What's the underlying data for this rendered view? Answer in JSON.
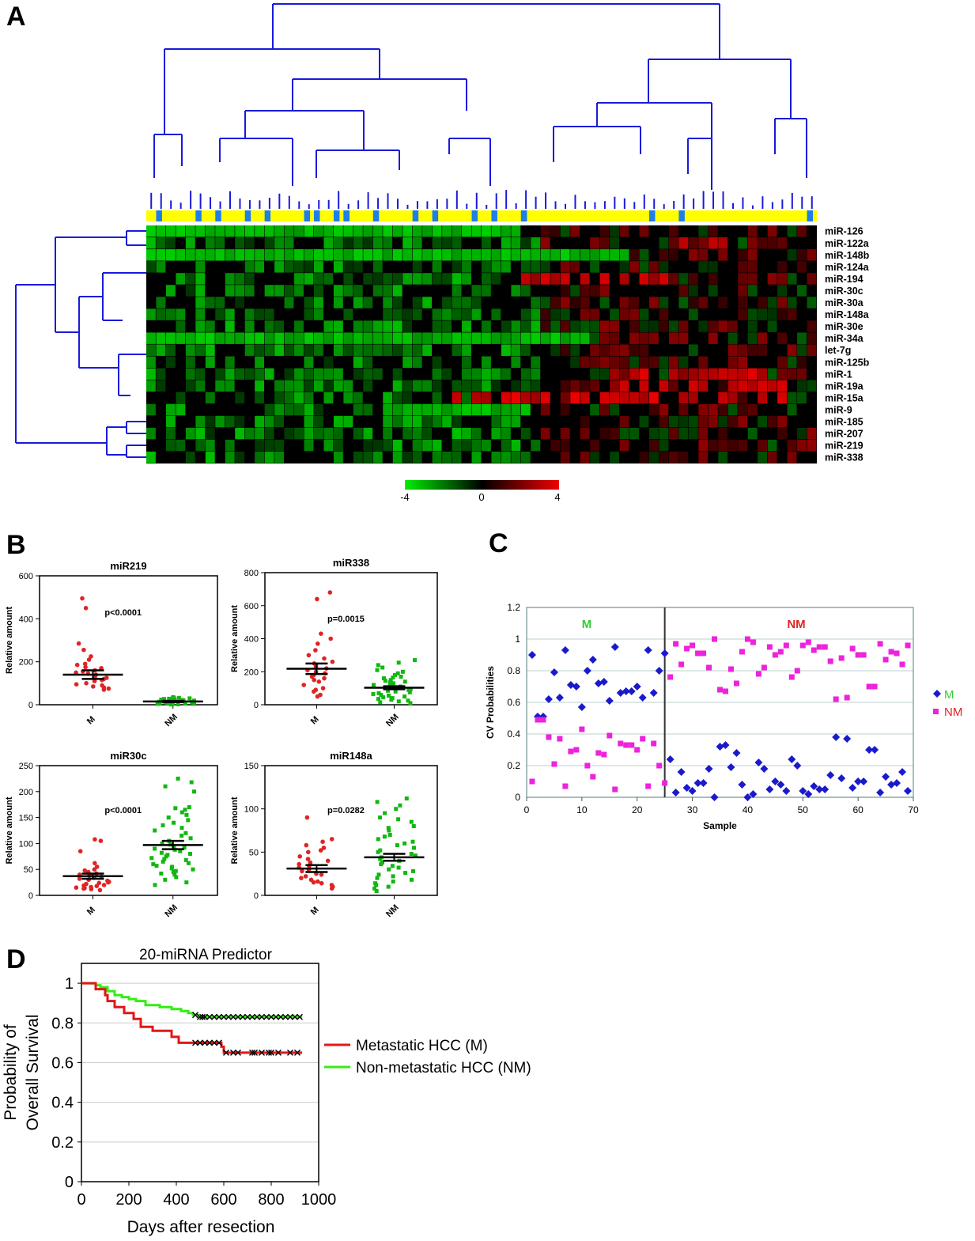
{
  "panels": {
    "A": {
      "label": "A"
    },
    "B": {
      "label": "B"
    },
    "C": {
      "label": "C"
    },
    "D": {
      "label": "D"
    }
  },
  "chart_data": [
    {
      "id": "A",
      "type": "heatmap",
      "rows": [
        "miR-126",
        "miR-122a",
        "miR-148b",
        "miR-124a",
        "miR-194",
        "miR-30c",
        "miR-30a",
        "miR-148a",
        "miR-30e",
        "miR-34a",
        "let-7g",
        "miR-125b",
        "miR-1",
        "miR-19a",
        "miR-15a",
        "miR-9",
        "miR-185",
        "miR-207",
        "miR-219",
        "miR-338"
      ],
      "n_columns": 68,
      "colorbar": {
        "min": -4,
        "mid": 0,
        "max": 4,
        "tick_labels": [
          "-4",
          "0",
          "4"
        ],
        "colors": [
          "#00ee00",
          "#000000",
          "#ee0000"
        ]
      },
      "group_bar_colors": {
        "M": "#1f7fe6",
        "NM": "#ffff00"
      },
      "dendrogram_color": "#1a1adb"
    },
    {
      "id": "B1",
      "type": "scatter",
      "title": "miR219",
      "ylabel": "Relative amount",
      "categories": [
        "M",
        "NM"
      ],
      "ylim": [
        0,
        600
      ],
      "yticks": [
        "0",
        "200",
        "400",
        "600"
      ],
      "pvalue": "p<0.0001",
      "series": [
        {
          "name": "M",
          "color": "#e02424",
          "mean": 140,
          "sem": 20,
          "values": [
            495,
            450,
            285,
            255,
            225,
            210,
            190,
            185,
            175,
            170,
            160,
            155,
            150,
            145,
            140,
            130,
            125,
            120,
            115,
            110,
            100,
            95,
            90,
            85,
            80,
            75,
            70
          ]
        },
        {
          "name": "NM",
          "color": "#10b810",
          "mean": 15,
          "sem": 3,
          "values": [
            35,
            33,
            32,
            30,
            30,
            28,
            27,
            26,
            25,
            24,
            22,
            21,
            20,
            19,
            18,
            17,
            16,
            15,
            14,
            14,
            13,
            12,
            11,
            10,
            10,
            9,
            8,
            7,
            6,
            5,
            5,
            4,
            3,
            2,
            1
          ]
        }
      ]
    },
    {
      "id": "B2",
      "type": "scatter",
      "title": "miR338",
      "ylabel": "Relative amount",
      "categories": [
        "M",
        "NM"
      ],
      "ylim": [
        0,
        800
      ],
      "yticks": [
        "0",
        "200",
        "400",
        "600",
        "800"
      ],
      "pvalue": "p=0.0015",
      "series": [
        {
          "name": "M",
          "color": "#e02424",
          "mean": 218,
          "sem": 32,
          "values": [
            680,
            640,
            430,
            400,
            370,
            330,
            300,
            280,
            260,
            250,
            240,
            230,
            220,
            210,
            200,
            190,
            180,
            170,
            160,
            150,
            140,
            120,
            100,
            90,
            80,
            60,
            50
          ]
        },
        {
          "name": "NM",
          "color": "#10b810",
          "mean": 103,
          "sem": 9,
          "values": [
            270,
            255,
            240,
            225,
            210,
            200,
            190,
            180,
            170,
            165,
            160,
            150,
            145,
            140,
            135,
            130,
            125,
            120,
            115,
            110,
            105,
            100,
            95,
            90,
            85,
            80,
            75,
            70,
            65,
            60,
            55,
            50,
            45,
            40,
            35,
            30,
            25,
            20,
            15,
            10
          ]
        }
      ]
    },
    {
      "id": "B3",
      "type": "scatter",
      "title": "miR30c",
      "ylabel": "Relative amount",
      "categories": [
        "M",
        "NM"
      ],
      "ylim": [
        0,
        250
      ],
      "yticks": [
        "0",
        "50",
        "100",
        "150",
        "200",
        "250"
      ],
      "pvalue": "p<0.0001",
      "series": [
        {
          "name": "M",
          "color": "#e02424",
          "mean": 37,
          "sem": 5,
          "values": [
            108,
            105,
            85,
            62,
            55,
            50,
            48,
            45,
            42,
            40,
            38,
            36,
            34,
            32,
            30,
            28,
            26,
            25,
            24,
            22,
            20,
            19,
            18,
            16,
            15,
            14,
            13,
            12,
            10
          ]
        },
        {
          "name": "NM",
          "color": "#10b810",
          "mean": 97,
          "sem": 8,
          "values": [
            225,
            218,
            210,
            200,
            170,
            168,
            165,
            160,
            155,
            150,
            145,
            140,
            135,
            130,
            125,
            120,
            115,
            110,
            105,
            100,
            98,
            95,
            92,
            90,
            88,
            85,
            82,
            80,
            78,
            75,
            72,
            70,
            68,
            65,
            62,
            60,
            57,
            55,
            52,
            50,
            47,
            45,
            42,
            40,
            35,
            30,
            25,
            20
          ]
        }
      ]
    },
    {
      "id": "B4",
      "type": "scatter",
      "title": "miR148a",
      "ylabel": "Relative amount",
      "categories": [
        "M",
        "NM"
      ],
      "ylim": [
        0,
        150
      ],
      "yticks": [
        "0",
        "50",
        "100",
        "150"
      ],
      "pvalue": "p=0.0282",
      "series": [
        {
          "name": "M",
          "color": "#e02424",
          "mean": 31,
          "sem": 4,
          "values": [
            90,
            65,
            62,
            58,
            55,
            52,
            50,
            45,
            42,
            40,
            38,
            36,
            34,
            32,
            30,
            28,
            26,
            25,
            24,
            22,
            20,
            18,
            16,
            15,
            14,
            12,
            10,
            8
          ]
        },
        {
          "name": "NM",
          "color": "#10b810",
          "mean": 44,
          "sem": 4,
          "values": [
            112,
            108,
            104,
            100,
            95,
            90,
            88,
            85,
            80,
            78,
            75,
            70,
            68,
            65,
            62,
            60,
            58,
            55,
            52,
            50,
            48,
            46,
            44,
            42,
            40,
            38,
            36,
            34,
            32,
            30,
            28,
            26,
            24,
            22,
            20,
            18,
            16,
            14,
            12,
            10,
            8,
            5
          ]
        }
      ]
    },
    {
      "id": "C",
      "type": "scatter",
      "xlabel": "Sample",
      "ylabel": "CV Probabilities",
      "xlim": [
        0,
        70
      ],
      "ylim": [
        0,
        1.2
      ],
      "xticks": [
        "0",
        "10",
        "20",
        "30",
        "40",
        "50",
        "60",
        "70"
      ],
      "yticks": [
        "0",
        "0.2",
        "0.4",
        "0.6",
        "0.8",
        "1",
        "1.2"
      ],
      "divider_x": 25,
      "group_labels": [
        {
          "text": "M",
          "color": "#33cc33"
        },
        {
          "text": "NM",
          "color": "#e02424"
        }
      ],
      "legend": [
        {
          "name": "M",
          "color": "#1a1acc",
          "marker": "diamond"
        },
        {
          "name": "NM",
          "color": "#ee22dd",
          "marker": "square"
        }
      ],
      "series": [
        {
          "name": "M",
          "color": "#1a1acc",
          "x": [
            1,
            2,
            3,
            4,
            5,
            6,
            7,
            8,
            9,
            10,
            11,
            12,
            13,
            14,
            15,
            16,
            17,
            18,
            19,
            20,
            21,
            22,
            23,
            24,
            25,
            26,
            27,
            28,
            29,
            30,
            31,
            32,
            33,
            34,
            35,
            36,
            37,
            38,
            39,
            40,
            41,
            42,
            43,
            44,
            45,
            46,
            47,
            48,
            49,
            50,
            51,
            52,
            53,
            54,
            55,
            56,
            57,
            58,
            59,
            60,
            61,
            62,
            63,
            64,
            65,
            66,
            67,
            68,
            69
          ],
          "y": [
            0.9,
            0.51,
            0.51,
            0.62,
            0.79,
            0.63,
            0.93,
            0.71,
            0.7,
            0.57,
            0.8,
            0.87,
            0.72,
            0.73,
            0.61,
            0.95,
            0.66,
            0.67,
            0.67,
            0.7,
            0.63,
            0.93,
            0.66,
            0.8,
            0.91,
            0.24,
            0.03,
            0.16,
            0.06,
            0.04,
            0.09,
            0.09,
            0.18,
            0,
            0.32,
            0.33,
            0.19,
            0.28,
            0.08,
            0,
            0.02,
            0.22,
            0.18,
            0.05,
            0.1,
            0.08,
            0.04,
            0.24,
            0.2,
            0.04,
            0.02,
            0.07,
            0.05,
            0.05,
            0.14,
            0.38,
            0.12,
            0.37,
            0.06,
            0.1,
            0.1,
            0.3,
            0.3,
            0.03,
            0.13,
            0.08,
            0.09,
            0.16,
            0.04
          ]
        },
        {
          "name": "NM",
          "color": "#ee22dd",
          "x": [
            1,
            2,
            3,
            4,
            5,
            6,
            7,
            8,
            9,
            10,
            11,
            12,
            13,
            14,
            15,
            16,
            17,
            18,
            19,
            20,
            21,
            22,
            23,
            24,
            25,
            26,
            27,
            28,
            29,
            30,
            31,
            32,
            33,
            34,
            35,
            36,
            37,
            38,
            39,
            40,
            41,
            42,
            43,
            44,
            45,
            46,
            47,
            48,
            49,
            50,
            51,
            52,
            53,
            54,
            55,
            56,
            57,
            58,
            59,
            60,
            61,
            62,
            63,
            64,
            65,
            66,
            67,
            68,
            69
          ],
          "y": [
            0.1,
            0.49,
            0.49,
            0.38,
            0.21,
            0.37,
            0.07,
            0.29,
            0.3,
            0.43,
            0.2,
            0.13,
            0.28,
            0.27,
            0.39,
            0.05,
            0.34,
            0.33,
            0.33,
            0.3,
            0.37,
            0.07,
            0.34,
            0.2,
            0.09,
            0.76,
            0.97,
            0.84,
            0.94,
            0.96,
            0.91,
            0.91,
            0.82,
            1.0,
            0.68,
            0.67,
            0.81,
            0.72,
            0.92,
            1.0,
            0.98,
            0.78,
            0.82,
            0.95,
            0.9,
            0.92,
            0.96,
            0.76,
            0.8,
            0.96,
            0.98,
            0.93,
            0.95,
            0.95,
            0.86,
            0.62,
            0.88,
            0.63,
            0.94,
            0.9,
            0.9,
            0.7,
            0.7,
            0.97,
            0.87,
            0.92,
            0.91,
            0.84,
            0.96
          ]
        }
      ]
    },
    {
      "id": "D",
      "type": "line",
      "title": "20-miRNA Predictor",
      "xlabel": "Days after resection",
      "ylabel": "Probability of Overall Survival",
      "xlim": [
        0,
        1000
      ],
      "ylim": [
        0,
        1.1
      ],
      "xticks": [
        "0",
        "200",
        "400",
        "600",
        "800",
        "1000"
      ],
      "yticks": [
        "0",
        "0.2",
        "0.4",
        "0.6",
        "0.8",
        "1"
      ],
      "series": [
        {
          "name": "Metastatic HCC (M)",
          "color": "#e01818",
          "x": [
            0,
            60,
            100,
            110,
            140,
            180,
            220,
            250,
            300,
            380,
            410,
            440,
            590,
            600,
            930
          ],
          "y": [
            1,
            0.97,
            0.94,
            0.91,
            0.88,
            0.85,
            0.82,
            0.78,
            0.76,
            0.73,
            0.7,
            0.7,
            0.68,
            0.65,
            0.65
          ],
          "censored_x": [
            480,
            500,
            520,
            540,
            560,
            580,
            610,
            640,
            660,
            720,
            730,
            760,
            790,
            800,
            830,
            880,
            910
          ]
        },
        {
          "name": "Non-metastatic HCC (NM)",
          "color": "#33ee11",
          "x": [
            0,
            60,
            80,
            110,
            140,
            170,
            200,
            230,
            270,
            330,
            380,
            420,
            450,
            470,
            490,
            930
          ],
          "y": [
            1,
            0.99,
            0.98,
            0.96,
            0.94,
            0.93,
            0.92,
            0.91,
            0.89,
            0.88,
            0.87,
            0.86,
            0.85,
            0.84,
            0.83,
            0.83
          ],
          "censored_x": [
            480,
            500,
            510,
            520,
            540,
            560,
            580,
            600,
            620,
            640,
            660,
            680,
            700,
            720,
            740,
            760,
            780,
            800,
            820,
            840,
            860,
            880,
            900,
            920
          ]
        }
      ]
    }
  ]
}
